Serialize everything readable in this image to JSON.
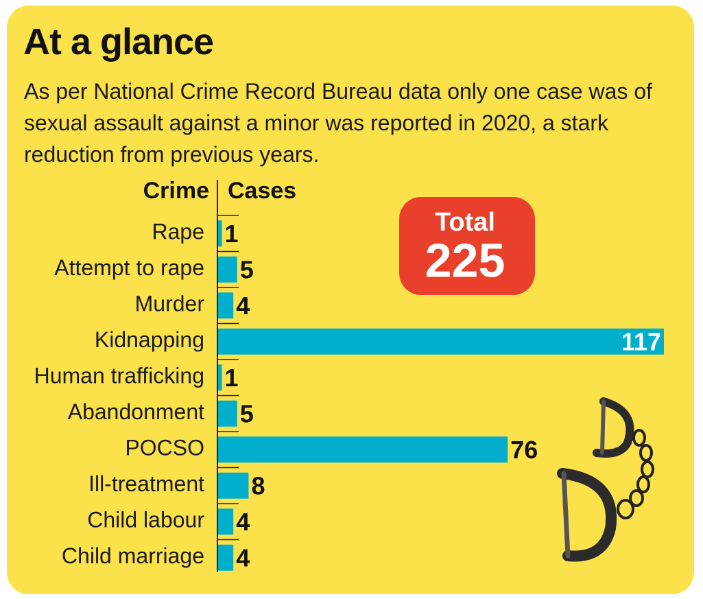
{
  "chart_data": {
    "type": "hbar",
    "title": "At a glance",
    "subtitle": "As per National Crime Record Bureau data only one case was of sexual assault against a minor was reported in 2020, a stark reduction from previous years.",
    "category_header": "Crime",
    "value_header": "Cases",
    "categories": [
      "Rape",
      "Attempt to rape",
      "Murder",
      "Kidnapping",
      "Human trafficking",
      "Abandonment",
      "POCSO",
      "Ill-treatment",
      "Child labour",
      "Child marriage"
    ],
    "values": [
      1,
      5,
      4,
      117,
      1,
      5,
      76,
      8,
      4,
      4
    ],
    "color": "#00aecb",
    "total_label": "Total",
    "total_value": 225
  }
}
